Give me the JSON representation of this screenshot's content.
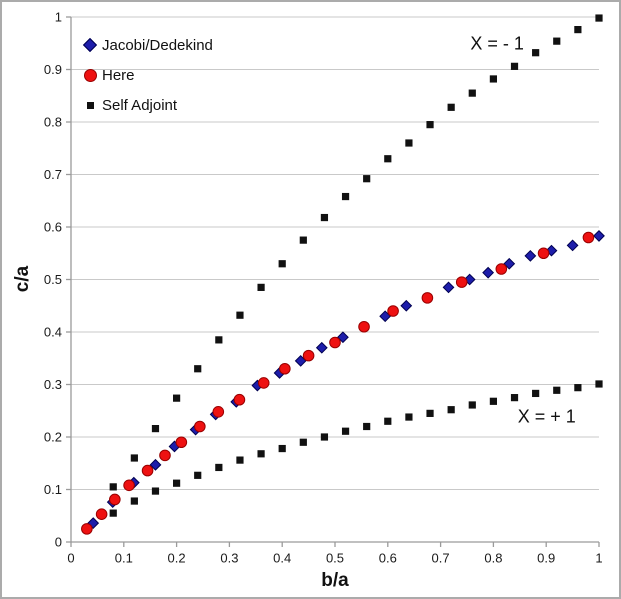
{
  "chart_data": {
    "type": "scatter",
    "title": "",
    "xlabel": "b/a",
    "ylabel": "c/a",
    "xlim": [
      0,
      1
    ],
    "ylim": [
      0,
      1
    ],
    "grid": "horizontal",
    "legend_position": "top-left-inside",
    "grid_color": "#c9c9c9",
    "axis_color": "#9a9a9a",
    "tick_label_color": "#1a1a1a",
    "xticks": {
      "values": [
        0,
        0.1,
        0.2,
        0.3,
        0.4,
        0.5,
        0.6,
        0.7,
        0.8,
        0.9,
        1
      ],
      "labels": [
        "0",
        "0.1",
        "0.2",
        "0.3",
        "0.4",
        "0.5",
        "0.6",
        "0.7",
        "0.8",
        "0.9",
        "1"
      ]
    },
    "yticks": {
      "values": [
        0,
        0.1,
        0.2,
        0.3,
        0.4,
        0.5,
        0.6,
        0.7,
        0.8,
        0.9,
        1
      ],
      "labels": [
        "0",
        "0.1",
        "0.2",
        "0.3",
        "0.4",
        "0.5",
        "0.6",
        "0.7",
        "0.8",
        "0.9",
        "1"
      ]
    },
    "series": [
      {
        "name": "Jacobi/Dedekind",
        "marker": "diamond",
        "color": "#1d1daa",
        "edge_color": "#000050",
        "points": [
          [
            0.042,
            0.036
          ],
          [
            0.079,
            0.076
          ],
          [
            0.119,
            0.113
          ],
          [
            0.16,
            0.147
          ],
          [
            0.196,
            0.182
          ],
          [
            0.236,
            0.214
          ],
          [
            0.274,
            0.243
          ],
          [
            0.313,
            0.267
          ],
          [
            0.353,
            0.298
          ],
          [
            0.395,
            0.322
          ],
          [
            0.435,
            0.345
          ],
          [
            0.475,
            0.37
          ],
          [
            0.515,
            0.39
          ],
          [
            0.595,
            0.43
          ],
          [
            0.635,
            0.45
          ],
          [
            0.715,
            0.485
          ],
          [
            0.755,
            0.5
          ],
          [
            0.79,
            0.513
          ],
          [
            0.83,
            0.53
          ],
          [
            0.87,
            0.545
          ],
          [
            0.91,
            0.555
          ],
          [
            0.95,
            0.565
          ],
          [
            1.0,
            0.583
          ]
        ]
      },
      {
        "name": "Here",
        "marker": "circle",
        "color": "#ee1111",
        "edge_color": "#990000",
        "points": [
          [
            0.03,
            0.025
          ],
          [
            0.058,
            0.053
          ],
          [
            0.083,
            0.081
          ],
          [
            0.11,
            0.108
          ],
          [
            0.145,
            0.136
          ],
          [
            0.178,
            0.165
          ],
          [
            0.209,
            0.19
          ],
          [
            0.244,
            0.22
          ],
          [
            0.279,
            0.248
          ],
          [
            0.319,
            0.271
          ],
          [
            0.365,
            0.303
          ],
          [
            0.405,
            0.33
          ],
          [
            0.45,
            0.355
          ],
          [
            0.5,
            0.38
          ],
          [
            0.555,
            0.41
          ],
          [
            0.61,
            0.44
          ],
          [
            0.675,
            0.465
          ],
          [
            0.74,
            0.495
          ],
          [
            0.815,
            0.52
          ],
          [
            0.895,
            0.55
          ],
          [
            0.98,
            0.58
          ]
        ]
      },
      {
        "name": "Self Adjoint",
        "marker": "square",
        "color": "#111111",
        "edge_color": "#111111",
        "branches": [
          {
            "label": "X = - 1",
            "points": [
              [
                0.08,
                0.105
              ],
              [
                0.12,
                0.16
              ],
              [
                0.16,
                0.216
              ],
              [
                0.2,
                0.274
              ],
              [
                0.24,
                0.33
              ],
              [
                0.28,
                0.385
              ],
              [
                0.32,
                0.432
              ],
              [
                0.36,
                0.485
              ],
              [
                0.4,
                0.53
              ],
              [
                0.44,
                0.575
              ],
              [
                0.48,
                0.618
              ],
              [
                0.52,
                0.658
              ],
              [
                0.56,
                0.692
              ],
              [
                0.6,
                0.73
              ],
              [
                0.64,
                0.76
              ],
              [
                0.68,
                0.795
              ],
              [
                0.72,
                0.828
              ],
              [
                0.76,
                0.855
              ],
              [
                0.8,
                0.882
              ],
              [
                0.84,
                0.906
              ],
              [
                0.88,
                0.932
              ],
              [
                0.92,
                0.954
              ],
              [
                0.96,
                0.976
              ],
              [
                1.0,
                0.998
              ]
            ]
          },
          {
            "label": "X = + 1",
            "points": [
              [
                0.08,
                0.055
              ],
              [
                0.12,
                0.078
              ],
              [
                0.16,
                0.097
              ],
              [
                0.2,
                0.112
              ],
              [
                0.24,
                0.127
              ],
              [
                0.28,
                0.142
              ],
              [
                0.32,
                0.156
              ],
              [
                0.36,
                0.168
              ],
              [
                0.4,
                0.178
              ],
              [
                0.44,
                0.19
              ],
              [
                0.48,
                0.2
              ],
              [
                0.52,
                0.211
              ],
              [
                0.56,
                0.22
              ],
              [
                0.6,
                0.23
              ],
              [
                0.64,
                0.238
              ],
              [
                0.68,
                0.245
              ],
              [
                0.72,
                0.252
              ],
              [
                0.76,
                0.261
              ],
              [
                0.8,
                0.268
              ],
              [
                0.84,
                0.275
              ],
              [
                0.88,
                0.283
              ],
              [
                0.92,
                0.289
              ],
              [
                0.96,
                0.294
              ],
              [
                1.0,
                0.301
              ]
            ]
          }
        ]
      }
    ],
    "draw_order": [
      2,
      0,
      1
    ],
    "annotations": [
      {
        "text": "X = - 1",
        "x": 0.807,
        "y": 0.949
      },
      {
        "text": "X = + 1",
        "x": 0.901,
        "y": 0.238
      }
    ]
  }
}
